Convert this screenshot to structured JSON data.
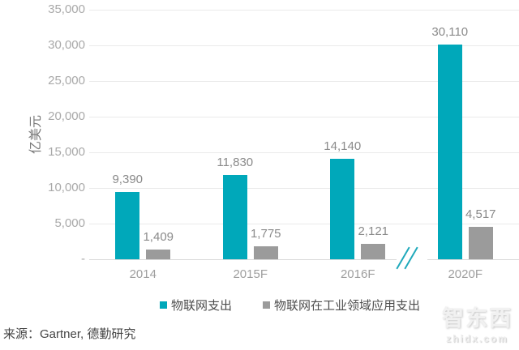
{
  "chart_data": {
    "type": "bar",
    "title": "",
    "ylabel": "亿美元",
    "categories": [
      "2014",
      "2015F",
      "2016F",
      "2020F"
    ],
    "series": [
      {
        "name": "物联网支出",
        "color": "#00a8ba",
        "values": [
          9390,
          11830,
          14140,
          30110
        ],
        "value_labels": [
          "9,390",
          "11,830",
          "14,140",
          "30,110"
        ]
      },
      {
        "name": "物联网在工业领域应用支出",
        "color": "#9b9b9b",
        "values": [
          1409,
          1775,
          2121,
          4517
        ],
        "value_labels": [
          "1,409",
          "1,775",
          "2,121",
          "4,517"
        ]
      }
    ],
    "ylim": [
      0,
      35000
    ],
    "yticks": [
      {
        "value": 0,
        "label": "-"
      },
      {
        "value": 5000,
        "label": "5,000"
      },
      {
        "value": 10000,
        "label": "10,000"
      },
      {
        "value": 15000,
        "label": "15,000"
      },
      {
        "value": 20000,
        "label": "20,000"
      },
      {
        "value": 25000,
        "label": "25,000"
      },
      {
        "value": 30000,
        "label": "30,000"
      },
      {
        "value": 35000,
        "label": "35,000"
      }
    ],
    "grid": true,
    "legend_position": "bottom",
    "axis_break": {
      "after_category": "2016F",
      "symbol": "//",
      "color": "#1fa9bb"
    }
  },
  "source_note": "来源：Gartner, 德勤研究",
  "watermark": {
    "title": "智东西",
    "subtitle": "zhidx.com"
  },
  "colors": {
    "accent_teal": "#00a8ba",
    "bar_gray": "#9b9b9b",
    "gridline": "#eaeaea",
    "axis_line": "#d9d9d9",
    "tick_text": "#a9a9a9",
    "value_text": "#8a8a8a",
    "category_text": "#9e9e9e",
    "legend_text": "#4d4d4d",
    "source_text": "#454545"
  }
}
